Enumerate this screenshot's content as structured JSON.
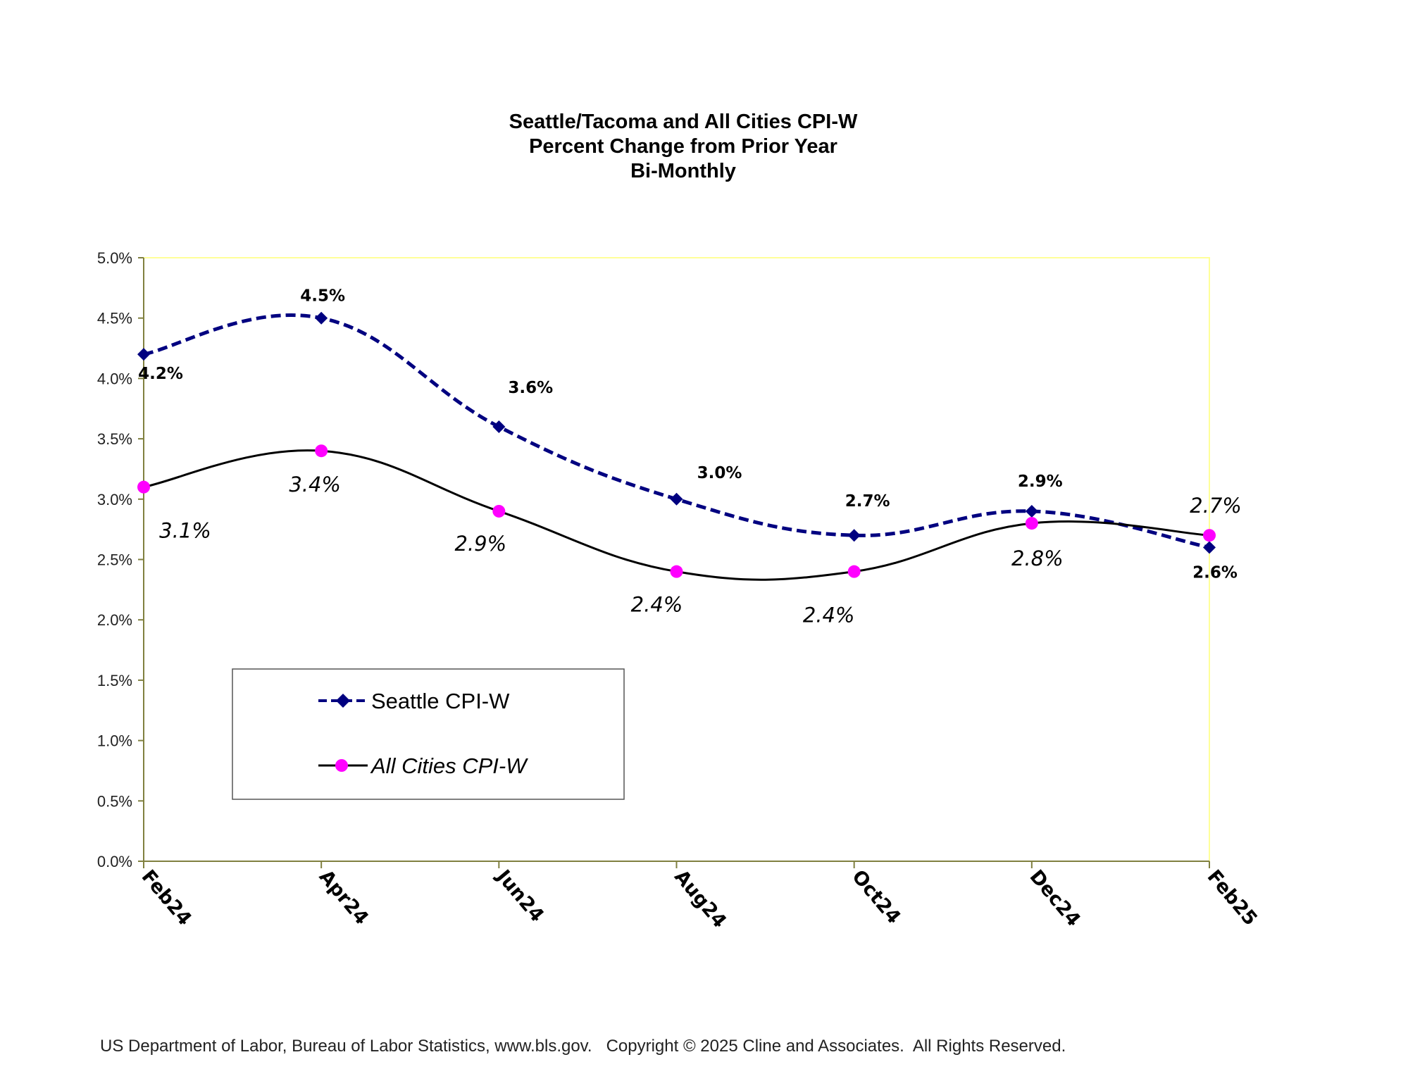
{
  "chart_data": {
    "type": "line",
    "title_lines": [
      "Seattle/Tacoma and All Cities CPI-W",
      "Percent Change from Prior Year",
      "Bi-Monthly"
    ],
    "categories": [
      "Feb24",
      "Apr24",
      "Jun24",
      "Aug24",
      "Oct24",
      "Dec24",
      "Feb25"
    ],
    "ylim": [
      0,
      5.0
    ],
    "ystep": 0.5,
    "y_tick_format": "percent_1dp",
    "y_ticks": [
      "0.0%",
      "0.5%",
      "1.0%",
      "1.5%",
      "2.0%",
      "2.5%",
      "3.0%",
      "3.5%",
      "4.0%",
      "4.5%",
      "5.0%"
    ],
    "series": [
      {
        "name": "Seattle CPI-W",
        "values": [
          4.2,
          4.5,
          3.6,
          3.0,
          2.7,
          2.9,
          2.6
        ],
        "labels": [
          "4.2%",
          "4.5%",
          "3.6%",
          "3.0%",
          "2.7%",
          "2.9%",
          "2.6%"
        ],
        "color": "#000080",
        "line_style": "dashed",
        "marker": "diamond"
      },
      {
        "name": "All Cities CPI-W",
        "values": [
          3.1,
          3.4,
          2.9,
          2.4,
          2.4,
          2.8,
          2.7
        ],
        "labels": [
          "3.1%",
          "3.4%",
          "2.9%",
          "2.4%",
          "2.4%",
          "2.8%",
          "2.7%"
        ],
        "color": "#000000",
        "marker_color": "#ff00ff",
        "line_style": "solid",
        "marker": "circle"
      }
    ],
    "plot_border_color": "#ffff99",
    "axis_color": "#808040",
    "legend_position": "bottom-left"
  },
  "footer": "US Department of Labor, Bureau of Labor Statistics, www.bls.gov.   Copyright © 2025 Cline and Associates.  All Rights Reserved."
}
